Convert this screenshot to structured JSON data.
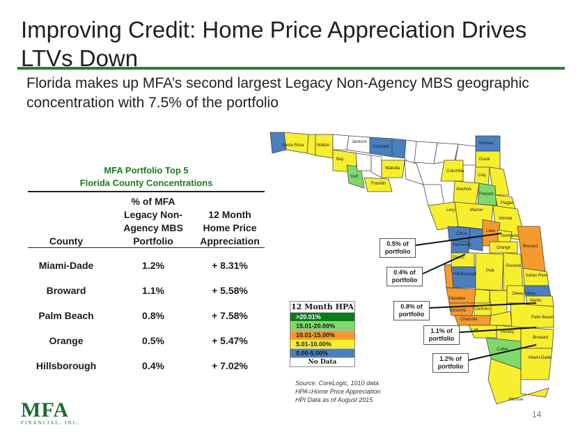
{
  "title": "Improving Credit: Home Price Appreciation Drives LTVs Down",
  "subtitle": "Florida makes up MFA’s second largest Legacy Non-Agency MBS geographic concentration with 7.5% of the portfolio",
  "table": {
    "title_line1": "MFA Portfolio Top 5",
    "title_line2": "Florida County Concentrations",
    "col_county": "County",
    "col_pct": "% of MFA Legacy Non-Agency MBS Portfolio",
    "col_hpa": "12 Month Home Price Appreciation",
    "rows": [
      {
        "county": "Miami-Dade",
        "pct": "1.2%",
        "hpa": "+ 8.31%"
      },
      {
        "county": "Broward",
        "pct": "1.1%",
        "hpa": "+ 5.58%"
      },
      {
        "county": "Palm Beach",
        "pct": "0.8%",
        "hpa": "+ 7.58%"
      },
      {
        "county": "Orange",
        "pct": "0.5%",
        "hpa": "+ 5.47%"
      },
      {
        "county": "Hillsborough",
        "pct": "0.4%",
        "hpa": "+ 7.02%"
      }
    ]
  },
  "legend": {
    "title": "12 Month HPA",
    "items": [
      {
        "label": ">20.01%",
        "color": "#0a7a1a"
      },
      {
        "label": "15.01-20.00%",
        "color": "#7fd86a"
      },
      {
        "label": "10.01-15.00%",
        "color": "#f59a2c"
      },
      {
        "label": "5.01-10.00%",
        "color": "#f7ef2e"
      },
      {
        "label": "0.00-5.00%",
        "color": "#4a7fc0"
      },
      {
        "label": "No Data",
        "color": "#ffffff"
      }
    ]
  },
  "callouts": [
    "0.5% of portfolio",
    "0.4% of portfolio",
    "0.8% of portfolio",
    "1.1% of portfolio",
    "1.2% of portfolio"
  ],
  "map_labels": [
    "Santa Rosa",
    "Walton",
    "Jackson",
    "Gadsden",
    "Nassau",
    "Duval",
    "Bay",
    "Gulf",
    "Franklin",
    "Wakulla",
    "Columbia",
    "Clay",
    "Alachua",
    "Putnam",
    "Flagler",
    "Levy",
    "Marion",
    "Volusia",
    "Citrus",
    "Lake",
    "Seminole",
    "Hernando",
    "Orange",
    "Brevard",
    "Pasco",
    "Hillsborough",
    "Polk",
    "Osceola",
    "Indian River",
    "Manatee",
    "Okeechobee",
    "Sarasota",
    "DeSoto",
    "Martin",
    "Charlotte",
    "Lee",
    "Hendry",
    "Palm Beach",
    "Collier",
    "Broward",
    "Miami-Dade",
    "Monroe"
  ],
  "source": {
    "line1": "Source: CoreLogic, 1010 data",
    "line2": "HPA=Home Price Appreciation",
    "line3": "HPI Data as of August 2015"
  },
  "logo": {
    "mark": "MFA",
    "tag": "FINANCIAL, INC."
  },
  "page_number": "14",
  "colors": {
    "accent": "#2e7d32",
    "table_title": "#1e7a1e"
  }
}
